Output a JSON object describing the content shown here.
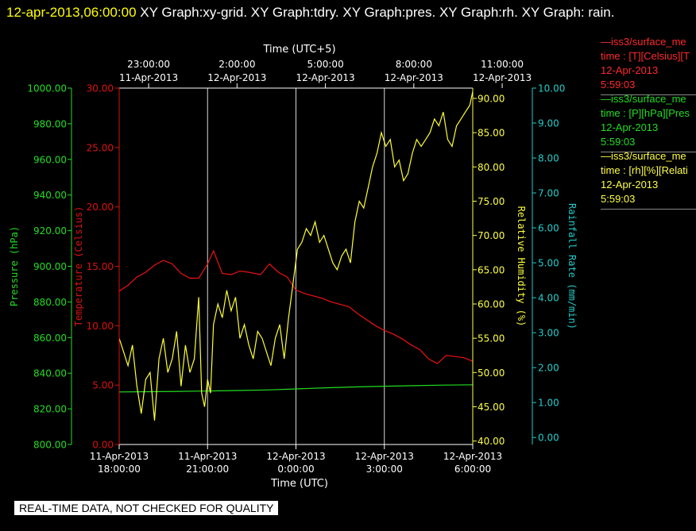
{
  "header": {
    "timestamp": "12-apr-2013,06:00:00",
    "graphs_text": " XY Graph:xy-grid.  XY Graph:tdry.  XY Graph:pres.  XY Graph:rh.  XY Graph: rain."
  },
  "legend": [
    {
      "line": "—iss3/surface_me",
      "desc": "time : [T][Celsius][T",
      "date": "12-Apr-2013",
      "time": "5:59:03",
      "color": "#ff2a2a"
    },
    {
      "line": "—iss3/surface_me",
      "desc": "time : [P][hPa][Pres",
      "date": "12-Apr-2013",
      "time": "5:59:03",
      "color": "#22dd22"
    },
    {
      "line": "—iss3/surface_me",
      "desc": "time : [rh][%][Relati",
      "date": "12-Apr-2013",
      "time": "5:59:03",
      "color": "#ffff44"
    }
  ],
  "footer_note": "REAL-TIME DATA, NOT CHECKED FOR QUALITY",
  "chart_data": {
    "type": "line",
    "top_axis": {
      "title": "Time (UTC+5)",
      "ticks": [
        {
          "time": "23:00:00",
          "date": "11-Apr-2013"
        },
        {
          "time": "2:00:00",
          "date": "12-Apr-2013"
        },
        {
          "time": "5:00:00",
          "date": "12-Apr-2013"
        },
        {
          "time": "8:00:00",
          "date": "12-Apr-2013"
        },
        {
          "time": "11:00:00",
          "date": "12-Apr-2013"
        }
      ]
    },
    "bottom_axis": {
      "title": "Time (UTC)",
      "range": [
        "11-Apr-2013 18:00:00",
        "12-Apr-2013 06:00:00"
      ],
      "ticks": [
        {
          "date": "11-Apr-2013",
          "time": "18:00:00"
        },
        {
          "date": "11-Apr-2013",
          "time": "21:00:00"
        },
        {
          "date": "12-Apr-2013",
          "time": "0:00:00"
        },
        {
          "date": "12-Apr-2013",
          "time": "3:00:00"
        },
        {
          "date": "12-Apr-2013",
          "time": "6:00:00"
        }
      ]
    },
    "axes": {
      "pressure": {
        "label": "Pressure (hPa)",
        "min": 800,
        "max": 1000,
        "ticks": [
          "800.00",
          "820.00",
          "840.00",
          "860.00",
          "880.00",
          "900.00",
          "920.00",
          "940.00",
          "960.00",
          "980.00",
          "1000.00"
        ],
        "color": "#22dd22"
      },
      "temperature": {
        "label": "Temperature (Celsius)",
        "min": 0,
        "max": 30,
        "ticks": [
          "0.00",
          "5.00",
          "10.00",
          "15.00",
          "20.00",
          "25.00",
          "30.00"
        ],
        "color": "#dd1111"
      },
      "humidity": {
        "label": "Relative Humidity (%)",
        "min": 39.5,
        "max": 91.5,
        "ticks": [
          "40.00",
          "45.00",
          "50.00",
          "55.00",
          "60.00",
          "65.00",
          "70.00",
          "75.00",
          "80.00",
          "85.00",
          "90.00"
        ],
        "color": "#ffff44"
      },
      "rain": {
        "label": "Rainfall Rate (mm/min)",
        "min": -0.2,
        "max": 10.0,
        "ticks": [
          "0.00",
          "1.00",
          "2.00",
          "3.00",
          "4.00",
          "5.00",
          "6.00",
          "7.00",
          "8.00",
          "9.00",
          "10.00"
        ],
        "color": "#22cccc"
      }
    },
    "x_unit": "hours since 11-Apr-2013 18:00 UTC",
    "x_range": [
      0,
      12
    ],
    "grid": "vertical at 3-hour intervals",
    "series": [
      {
        "name": "Temperature",
        "axis": "temperature",
        "color": "#ee1111",
        "x": [
          0,
          0.3,
          0.6,
          0.9,
          1.2,
          1.5,
          1.8,
          2.1,
          2.4,
          2.7,
          3.0,
          3.2,
          3.5,
          3.8,
          4.1,
          4.4,
          4.8,
          5.1,
          5.4,
          5.7,
          6.0,
          6.3,
          6.6,
          6.9,
          7.2,
          7.5,
          7.8,
          8.1,
          8.4,
          8.7,
          9.0,
          9.3,
          9.6,
          9.9,
          10.2,
          10.5,
          10.8,
          11.1,
          11.4,
          11.7,
          12.0
        ],
        "y": [
          12.9,
          13.4,
          14.1,
          14.5,
          15.1,
          15.5,
          15.2,
          14.4,
          14.0,
          14.0,
          15.2,
          16.3,
          14.4,
          14.3,
          14.6,
          14.5,
          14.3,
          15.2,
          14.5,
          14.1,
          13.0,
          12.7,
          12.5,
          12.3,
          12.0,
          11.8,
          11.6,
          11.0,
          10.5,
          10.0,
          9.6,
          9.3,
          8.9,
          8.4,
          8.0,
          7.2,
          6.8,
          7.5,
          7.4,
          7.3,
          7.0
        ]
      },
      {
        "name": "Pressure",
        "axis": "pressure",
        "color": "#22dd22",
        "x": [
          0,
          1,
          2,
          3,
          4,
          5,
          6,
          7,
          8,
          9,
          10,
          11,
          12
        ],
        "y": [
          829.5,
          829.6,
          829.8,
          830.0,
          830.3,
          830.6,
          831.2,
          831.8,
          832.3,
          832.7,
          833.0,
          833.3,
          833.5
        ]
      },
      {
        "name": "Relative Humidity",
        "axis": "humidity",
        "color": "#ffff33",
        "x": [
          0,
          0.15,
          0.3,
          0.45,
          0.6,
          0.75,
          0.9,
          1.05,
          1.2,
          1.35,
          1.5,
          1.65,
          1.8,
          1.95,
          2.1,
          2.25,
          2.4,
          2.55,
          2.7,
          2.8,
          2.9,
          3.0,
          3.1,
          3.2,
          3.35,
          3.5,
          3.65,
          3.8,
          3.95,
          4.1,
          4.25,
          4.4,
          4.55,
          4.7,
          4.85,
          5.0,
          5.15,
          5.3,
          5.45,
          5.6,
          5.75,
          5.9,
          6.05,
          6.2,
          6.35,
          6.5,
          6.65,
          6.8,
          6.95,
          7.1,
          7.25,
          7.4,
          7.55,
          7.7,
          7.85,
          8.0,
          8.15,
          8.3,
          8.45,
          8.6,
          8.75,
          8.9,
          9.05,
          9.2,
          9.35,
          9.5,
          9.65,
          9.8,
          9.95,
          10.1,
          10.25,
          10.4,
          10.55,
          10.7,
          10.85,
          11.0,
          11.15,
          11.3,
          11.45,
          11.6,
          11.75,
          11.9,
          12.0
        ],
        "y": [
          55,
          53,
          51,
          54,
          48,
          44,
          49,
          50,
          43,
          52,
          55,
          50,
          52,
          56,
          48,
          54,
          50,
          52,
          61,
          47,
          45,
          49,
          47,
          57,
          60,
          58,
          62,
          59,
          61,
          55,
          57,
          54,
          52,
          56,
          55,
          53,
          51,
          55,
          57,
          52,
          58,
          63,
          68,
          69,
          71,
          70,
          72,
          69,
          70,
          68,
          66,
          65,
          67,
          68,
          66,
          72,
          75,
          74,
          77,
          80,
          82,
          85,
          83,
          84,
          80,
          81,
          78,
          79,
          82,
          84,
          83,
          84,
          85,
          87,
          86,
          88,
          84,
          83,
          86,
          87,
          88,
          89,
          91
        ]
      }
    ]
  }
}
